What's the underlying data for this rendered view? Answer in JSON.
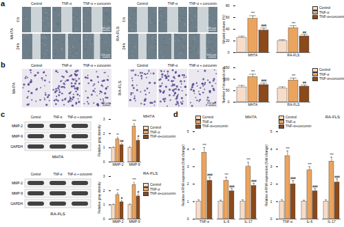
{
  "panel_labels": [
    "a",
    "b",
    "c",
    "d"
  ],
  "wound_healing": [
    {
      "cell": "MH7A",
      "conditions": [
        "Control",
        "TNF-α",
        "TNF-α + curcumin"
      ],
      "times": [
        "0 h",
        "24 h"
      ],
      "scale_bar": "100 μm"
    },
    {
      "cell": "RA-FLS",
      "conditions": [
        "Control",
        "TNF-α",
        "TNF-α + curcumin"
      ],
      "times": [
        "0 h",
        "24 h"
      ],
      "scale_bar": "100 μm"
    }
  ],
  "transwell": [
    {
      "cell": "MH7A",
      "conditions": [
        "Control",
        "TNF-α",
        "TNF-α + curcumin"
      ],
      "scale_bar": "100 μm"
    },
    {
      "cell": "RA-FLS",
      "conditions": [
        "Control",
        "TNF-α",
        "TNF-α + curcumin"
      ],
      "scale_bar": "100 μm"
    }
  ],
  "western_blot": [
    {
      "cell": "MH7A",
      "conditions": [
        "Control",
        "TNF-α",
        "TNF-α + curcumin"
      ],
      "proteins": [
        "MMP-2",
        "MMP-9",
        "GAPDH"
      ]
    },
    {
      "cell": "RA-FLS",
      "conditions": [
        "Control",
        "TNF-α",
        "TNF-α + curcumin"
      ],
      "proteins": [
        "MMP-2",
        "MMP-9",
        "GAPDH"
      ]
    }
  ],
  "chart_data": [
    {
      "type": "bar",
      "ylabel": "Wound closure (%)",
      "categories": [
        "MH7A",
        "RA-FLS"
      ],
      "ylim": [
        0,
        80
      ],
      "yticks": [
        0,
        20,
        40,
        60,
        80
      ],
      "legend": "right",
      "series": [
        {
          "name": "Control",
          "color": "#f7dcc8",
          "values": [
            25,
            20
          ],
          "errors": [
            3,
            2
          ]
        },
        {
          "name": "TNF-α",
          "color": "#eba45e",
          "values": [
            58,
            42
          ],
          "errors": [
            5,
            4
          ],
          "significance": [
            "***",
            "***"
          ]
        },
        {
          "name": "TNF-α+curcumin",
          "color": "#8b4a1c",
          "values": [
            38,
            28
          ],
          "errors": [
            4,
            3
          ],
          "significance": [
            "###",
            "##"
          ]
        }
      ]
    },
    {
      "type": "bar",
      "ylabel": "Number of invaded cells",
      "categories": [
        "MH7A",
        "RA-FLS"
      ],
      "ylim": [
        0,
        150
      ],
      "yticks": [
        0,
        50,
        100,
        150
      ],
      "legend": "right",
      "series": [
        {
          "name": "Control",
          "color": "#f7dcc8",
          "values": [
            65,
            60
          ],
          "errors": [
            8,
            7
          ]
        },
        {
          "name": "TNF-α",
          "color": "#eba45e",
          "values": [
            110,
            95
          ],
          "errors": [
            12,
            10
          ],
          "significance": [
            "***",
            "***"
          ]
        },
        {
          "name": "TNF-α+curcumin",
          "color": "#8b4a1c",
          "values": [
            75,
            68
          ],
          "errors": [
            8,
            6
          ],
          "significance": [
            "###",
            "##"
          ]
        }
      ]
    },
    {
      "type": "bar",
      "title": "MH7A",
      "ylabel": "Relative gray density",
      "categories": [
        "MMP-2",
        "MMP-9"
      ],
      "ylim": [
        0,
        3
      ],
      "yticks": [
        0,
        1,
        2,
        3
      ],
      "legend": "right",
      "series": [
        {
          "name": "Control",
          "color": "#f7dcc8",
          "values": [
            1,
            1
          ],
          "errors": [
            0.08,
            0.1
          ]
        },
        {
          "name": "TNF-α",
          "color": "#eba45e",
          "values": [
            1.6,
            2.5
          ],
          "errors": [
            0.15,
            0.2
          ],
          "significance": [
            "**",
            "***"
          ]
        },
        {
          "name": "TNF-α+curcumin",
          "color": "#8b4a1c",
          "values": [
            1.2,
            1.5
          ],
          "errors": [
            0.1,
            0.15
          ],
          "significance": [
            "##",
            "#"
          ]
        }
      ]
    },
    {
      "type": "bar",
      "title": "RA-FLS",
      "ylabel": "Relative gray density",
      "categories": [
        "MMP-2",
        "MMP-9"
      ],
      "ylim": [
        0,
        3
      ],
      "yticks": [
        0,
        1,
        2,
        3
      ],
      "legend": "right",
      "series": [
        {
          "name": "Control",
          "color": "#f7dcc8",
          "values": [
            1,
            1
          ],
          "errors": [
            0.08,
            0.1
          ]
        },
        {
          "name": "TNF-α",
          "color": "#eba45e",
          "values": [
            1.7,
            2.4
          ],
          "errors": [
            0.15,
            0.2
          ],
          "significance": [
            "**",
            "***"
          ]
        },
        {
          "name": "TNF-α+curcumin",
          "color": "#8b4a1c",
          "values": [
            1.2,
            1.6
          ],
          "errors": [
            0.1,
            0.15
          ],
          "significance": [
            "#",
            "#"
          ]
        }
      ]
    },
    {
      "type": "bar",
      "title": "MH7A",
      "ylabel": "Relative mRNA expression (fold change)",
      "categories": [
        "TNF-α",
        "IL-6",
        "IL-17"
      ],
      "ylim": [
        0,
        5
      ],
      "yticks": [
        0,
        1,
        2,
        3,
        4,
        5
      ],
      "legend": "top",
      "series": [
        {
          "name": "Control",
          "color": "#f7dcc8",
          "values": [
            1,
            1,
            1
          ],
          "errors": [
            0.1,
            0.08,
            0.1
          ]
        },
        {
          "name": "TNF-α",
          "color": "#eba45e",
          "values": [
            3.8,
            2.2,
            3.0
          ],
          "errors": [
            0.3,
            0.2,
            0.25
          ],
          "significance": [
            "***",
            "***",
            "***"
          ]
        },
        {
          "name": "TNF-α+curcumin",
          "color": "#8b4a1c",
          "values": [
            2.2,
            1.6,
            1.9
          ],
          "errors": [
            0.2,
            0.15,
            0.15
          ],
          "significance": [
            "###",
            "###",
            "###"
          ]
        }
      ]
    },
    {
      "type": "bar",
      "title": "RA-FLS",
      "ylabel": "Relative mRNA expression (fold change)",
      "categories": [
        "TNF-α",
        "IL-6",
        "IL-17"
      ],
      "ylim": [
        0,
        5
      ],
      "yticks": [
        0,
        1,
        2,
        3,
        4,
        5
      ],
      "legend": "top",
      "series": [
        {
          "name": "Control",
          "color": "#f7dcc8",
          "values": [
            1,
            1,
            1
          ],
          "errors": [
            0.1,
            0.08,
            0.1
          ]
        },
        {
          "name": "TNF-α",
          "color": "#eba45e",
          "values": [
            3.6,
            2.8,
            3.3
          ],
          "errors": [
            0.3,
            0.2,
            0.25
          ],
          "significance": [
            "***",
            "***",
            "***"
          ]
        },
        {
          "name": "TNF-α+curcumin",
          "color": "#8b4a1c",
          "values": [
            2.0,
            1.6,
            2.1
          ],
          "errors": [
            0.2,
            0.15,
            0.2
          ],
          "significance": [
            "###",
            "###",
            "###"
          ]
        }
      ]
    }
  ]
}
